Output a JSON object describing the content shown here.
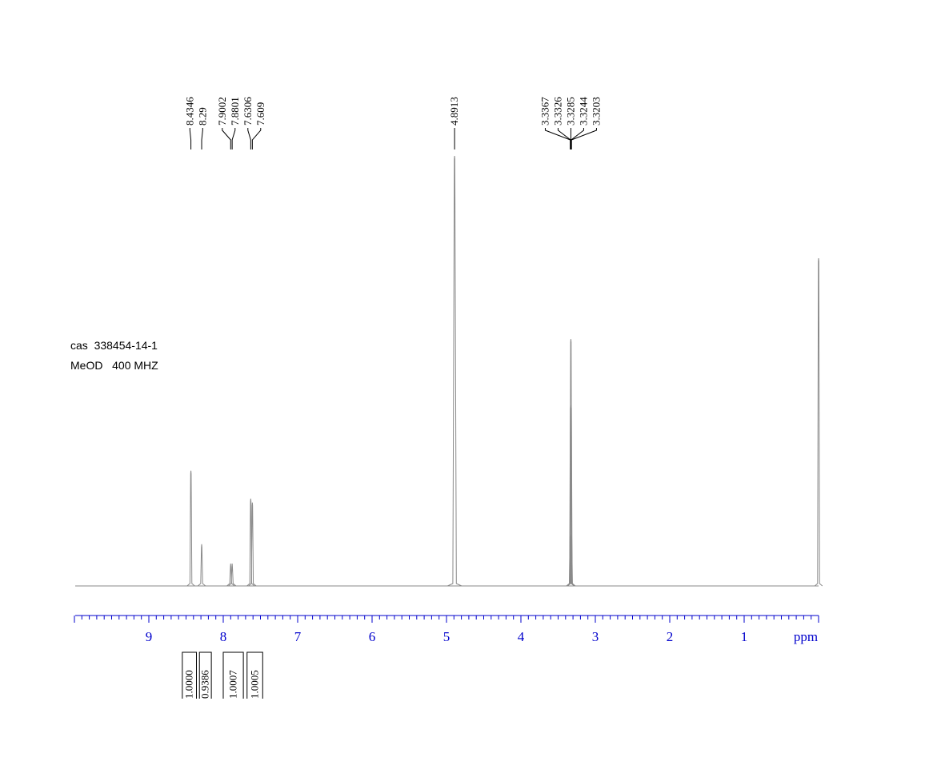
{
  "chart_data": {
    "type": "nmr",
    "annotations": [
      "cas  338454-14-1",
      "MeOD   400 MHZ"
    ],
    "xlabel": "ppm",
    "xlim": [
      10,
      0
    ],
    "xticks": [
      9,
      8,
      7,
      6,
      5,
      4,
      3,
      2,
      1
    ],
    "color": "#8a8a8a",
    "axis_color": "#0000cc",
    "x": [
      8.4346,
      8.29,
      7.9002,
      7.8801,
      7.6306,
      7.609,
      4.8913,
      3.3367,
      3.3326,
      3.3285,
      3.3244,
      3.3203,
      0
    ],
    "values": [
      26.8,
      9.7,
      5.2,
      5.2,
      20.3,
      19.4,
      100,
      12,
      42,
      57.4,
      42,
      12,
      76.2
    ],
    "peak_labels": [
      8.4346,
      8.29,
      7.9002,
      7.8801,
      7.6306,
      7.609,
      4.8913,
      3.3367,
      3.3326,
      3.3285,
      3.3244,
      3.3203
    ],
    "integrals": [
      {
        "from": 8.55,
        "to": 8.36,
        "value": 1,
        "label": "1.0000"
      },
      {
        "from": 8.32,
        "to": 8.16,
        "value": 0.9386,
        "label": "0.9386"
      },
      {
        "from": 8.0,
        "to": 7.73,
        "value": 1.0007,
        "label": "1.0007"
      },
      {
        "from": 7.68,
        "to": 7.47,
        "value": 1.0005,
        "label": "1.0005"
      }
    ]
  }
}
